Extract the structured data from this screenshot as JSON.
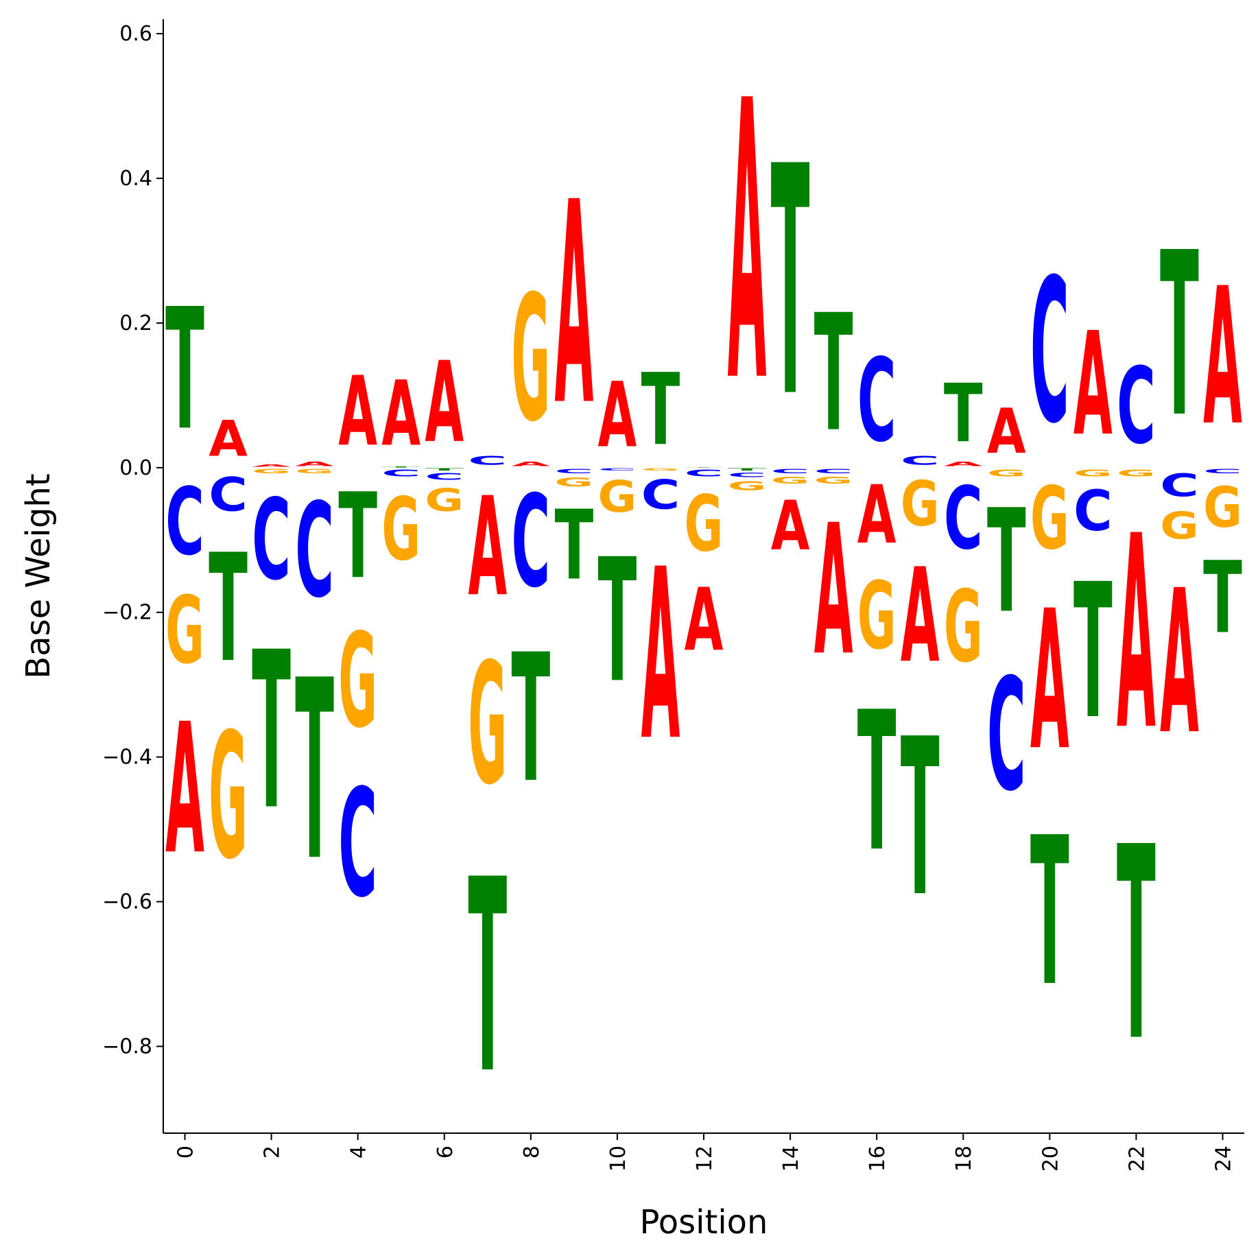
{
  "chart_data": {
    "type": "sequence-logo",
    "title": "",
    "xlabel": "Position",
    "ylabel": "Base Weight",
    "xlim": [
      -0.5,
      24.5
    ],
    "ylim": [
      -0.92,
      0.62
    ],
    "xticks": [
      "0",
      "2",
      "4",
      "6",
      "8",
      "10",
      "12",
      "14",
      "16",
      "18",
      "20",
      "22",
      "24"
    ],
    "yticks": [
      "−0.8",
      "−0.6",
      "−0.4",
      "−0.2",
      "0.0",
      "0.2",
      "0.4",
      "0.6"
    ],
    "colors": {
      "A": "#ff0000",
      "C": "#0000ff",
      "G": "#ffa500",
      "T": "#008000"
    },
    "positions": [
      {
        "pos": 0,
        "weights": {
          "A": -0.29,
          "C": -0.15,
          "G": -0.15,
          "T": 0.27
        }
      },
      {
        "pos": 1,
        "weights": {
          "A": 0.08,
          "C": -0.075,
          "G": -0.28,
          "T": -0.24
        }
      },
      {
        "pos": 2,
        "weights": {
          "A": 0.005,
          "C": -0.18,
          "G": -0.01,
          "T": -0.35
        }
      },
      {
        "pos": 3,
        "weights": {
          "A": 0.01,
          "C": -0.21,
          "G": -0.01,
          "T": -0.4
        }
      },
      {
        "pos": 4,
        "weights": {
          "A": 0.155,
          "C": -0.24,
          "G": -0.21,
          "T": -0.19
        }
      },
      {
        "pos": 5,
        "weights": {
          "A": 0.145,
          "C": -0.015,
          "G": -0.14,
          "T": 0.002
        }
      },
      {
        "pos": 6,
        "weights": {
          "A": 0.18,
          "C": -0.015,
          "G": -0.05,
          "T": -0.005
        }
      },
      {
        "pos": 7,
        "weights": {
          "A": -0.22,
          "C": 0.02,
          "G": -0.27,
          "T": -0.43
        }
      },
      {
        "pos": 8,
        "weights": {
          "A": 0.01,
          "C": -0.205,
          "G": 0.28,
          "T": -0.285
        }
      },
      {
        "pos": 9,
        "weights": {
          "A": 0.45,
          "C": -0.01,
          "G": -0.02,
          "T": -0.155
        }
      },
      {
        "pos": 10,
        "weights": {
          "A": 0.145,
          "C": -0.005,
          "G": -0.07,
          "T": -0.275
        }
      },
      {
        "pos": 11,
        "weights": {
          "A": -0.38,
          "C": -0.065,
          "G": -0.005,
          "T": 0.16
        }
      },
      {
        "pos": 12,
        "weights": {
          "A": -0.14,
          "C": -0.015,
          "G": -0.125,
          "T": 0.001
        }
      },
      {
        "pos": 13,
        "weights": {
          "A": 0.62,
          "C": -0.01,
          "G": -0.02,
          "T": -0.005
        }
      },
      {
        "pos": 14,
        "weights": {
          "A": -0.11,
          "C": -0.01,
          "G": -0.015,
          "T": 0.51
        }
      },
      {
        "pos": 15,
        "weights": {
          "A": -0.29,
          "C": -0.01,
          "G": -0.015,
          "T": 0.26
        }
      },
      {
        "pos": 16,
        "weights": {
          "A": -0.13,
          "C": 0.185,
          "G": -0.15,
          "T": -0.31
        }
      },
      {
        "pos": 17,
        "weights": {
          "A": -0.21,
          "C": 0.02,
          "G": -0.1,
          "T": -0.35
        }
      },
      {
        "pos": 18,
        "weights": {
          "A": 0.01,
          "C": -0.14,
          "G": -0.16,
          "T": 0.13
        }
      },
      {
        "pos": 19,
        "weights": {
          "A": 0.1,
          "C": -0.25,
          "G": -0.015,
          "T": -0.23
        }
      },
      {
        "pos": 20,
        "weights": {
          "A": -0.31,
          "C": 0.32,
          "G": -0.14,
          "T": -0.33
        }
      },
      {
        "pos": 21,
        "weights": {
          "A": 0.23,
          "C": -0.09,
          "G": -0.015,
          "T": -0.3
        }
      },
      {
        "pos": 22,
        "weights": {
          "A": -0.43,
          "C": 0.17,
          "G": -0.015,
          "T": -0.43
        }
      },
      {
        "pos": 23,
        "weights": {
          "A": -0.32,
          "C": -0.05,
          "G": -0.06,
          "T": 0.365
        }
      },
      {
        "pos": 24,
        "weights": {
          "A": 0.305,
          "C": -0.01,
          "G": -0.09,
          "T": -0.16
        }
      }
    ]
  }
}
